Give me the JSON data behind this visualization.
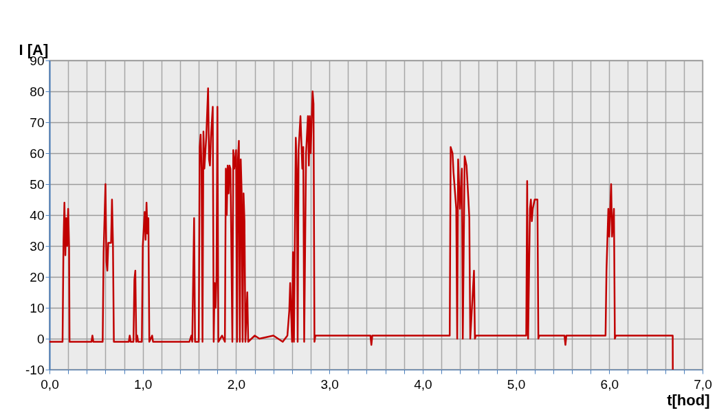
{
  "chart_data": {
    "type": "line",
    "xlabel": "t[hod]",
    "ylabel": "I [A]",
    "xlim": [
      0,
      7
    ],
    "ylim": [
      -10,
      90
    ],
    "xticks": [
      {
        "value": 0,
        "label": "0,0"
      },
      {
        "value": 0.2,
        "label": null
      },
      {
        "value": 0.4,
        "label": null
      },
      {
        "value": 0.6,
        "label": null
      },
      {
        "value": 0.8,
        "label": null
      },
      {
        "value": 1,
        "label": "1,0"
      },
      {
        "value": 1.2,
        "label": null
      },
      {
        "value": 1.4,
        "label": null
      },
      {
        "value": 1.6,
        "label": null
      },
      {
        "value": 1.8,
        "label": null
      },
      {
        "value": 2,
        "label": "2,0"
      },
      {
        "value": 2.2,
        "label": null
      },
      {
        "value": 2.4,
        "label": null
      },
      {
        "value": 2.6,
        "label": null
      },
      {
        "value": 2.8,
        "label": null
      },
      {
        "value": 3,
        "label": "3,0"
      },
      {
        "value": 3.2,
        "label": null
      },
      {
        "value": 3.4,
        "label": null
      },
      {
        "value": 3.6,
        "label": null
      },
      {
        "value": 3.8,
        "label": null
      },
      {
        "value": 4,
        "label": "4,0"
      },
      {
        "value": 4.2,
        "label": null
      },
      {
        "value": 4.4,
        "label": null
      },
      {
        "value": 4.6,
        "label": null
      },
      {
        "value": 4.8,
        "label": null
      },
      {
        "value": 5,
        "label": "5,0"
      },
      {
        "value": 5.2,
        "label": null
      },
      {
        "value": 5.4,
        "label": null
      },
      {
        "value": 5.6,
        "label": null
      },
      {
        "value": 5.8,
        "label": null
      },
      {
        "value": 6,
        "label": "6,0"
      },
      {
        "value": 6.2,
        "label": null
      },
      {
        "value": 6.4,
        "label": null
      },
      {
        "value": 6.6,
        "label": null
      },
      {
        "value": 6.8,
        "label": null
      },
      {
        "value": 7,
        "label": "7,0"
      }
    ],
    "yticks": [
      -10,
      0,
      10,
      20,
      30,
      40,
      50,
      60,
      70,
      80,
      90
    ],
    "grid": true,
    "marker": "none",
    "line_style": "solid",
    "series": [
      {
        "color": "#c00000",
        "x": [
          0,
          0.14,
          0.15,
          0.16,
          0.17,
          0.18,
          0.19,
          0.2,
          0.21,
          0.215,
          0.45,
          0.46,
          0.47,
          0.57,
          0.58,
          0.6,
          0.61,
          0.62,
          0.63,
          0.66,
          0.67,
          0.68,
          0.69,
          0.85,
          0.86,
          0.87,
          0.9,
          0.91,
          0.92,
          0.93,
          0.94,
          0.95,
          0.99,
          1.0,
          1.02,
          1.03,
          1.04,
          1.05,
          1.06,
          1.07,
          1.1,
          1.11,
          1.5,
          1.52,
          1.53,
          1.55,
          1.56,
          1.6,
          1.61,
          1.62,
          1.63,
          1.64,
          1.65,
          1.66,
          1.68,
          1.7,
          1.71,
          1.72,
          1.73,
          1.75,
          1.76,
          1.77,
          1.78,
          1.79,
          1.8,
          1.81,
          1.85,
          1.88,
          1.89,
          1.9,
          1.91,
          1.92,
          1.93,
          1.94,
          1.96,
          1.97,
          1.98,
          2.0,
          2.01,
          2.02,
          2.03,
          2.04,
          2.05,
          2.06,
          2.07,
          2.08,
          2.09,
          2.1,
          2.12,
          2.13,
          2.2,
          2.25,
          2.4,
          2.5,
          2.55,
          2.57,
          2.58,
          2.6,
          2.61,
          2.62,
          2.64,
          2.65,
          2.66,
          2.67,
          2.69,
          2.71,
          2.72,
          2.73,
          2.75,
          2.77,
          2.78,
          2.79,
          2.8,
          2.82,
          2.83,
          2.84,
          2.85,
          3.44,
          3.45,
          3.46,
          4.29,
          4.3,
          4.32,
          4.33,
          4.36,
          4.37,
          4.38,
          4.4,
          4.42,
          4.43,
          4.45,
          4.47,
          4.49,
          4.5,
          4.51,
          4.55,
          4.56,
          4.57,
          5.11,
          5.12,
          5.13,
          5.15,
          5.16,
          5.17,
          5.18,
          5.2,
          5.23,
          5.24,
          5.25,
          5.52,
          5.53,
          5.54,
          5.96,
          5.97,
          5.99,
          6.0,
          6.02,
          6.03,
          6.05,
          6.06,
          6.07,
          6.68,
          6.681
        ],
        "values": [
          -1,
          -1,
          31,
          44,
          27,
          39,
          30,
          42,
          30,
          -1,
          -1,
          1,
          -1,
          -1,
          28,
          50,
          25,
          22,
          31,
          31,
          45,
          31,
          -1,
          -1,
          1,
          -1,
          -1,
          19,
          22,
          -1,
          1,
          -1,
          -1,
          30,
          41,
          32,
          44,
          34,
          39,
          -1,
          1,
          -1,
          -1,
          1,
          -1,
          39,
          -1,
          -1,
          62,
          66,
          55,
          -1,
          67,
          55,
          65,
          81,
          58,
          56,
          65,
          75,
          -1,
          18,
          10,
          20,
          75,
          -1,
          1,
          -1,
          55,
          40,
          56,
          47,
          56,
          55,
          -1,
          61,
          55,
          61,
          -1,
          58,
          64,
          -1,
          58,
          47,
          -1,
          47,
          38,
          -1,
          15,
          -1,
          1,
          0,
          1,
          -1,
          1,
          9,
          18,
          -1,
          28,
          -1,
          65,
          55,
          -1,
          61,
          72,
          55,
          62,
          -1,
          60,
          72,
          56,
          72,
          60,
          80,
          76,
          -1,
          1,
          1,
          -2,
          1,
          1,
          62,
          60,
          54,
          42,
          0,
          58,
          42,
          55,
          0,
          59,
          56,
          45,
          39,
          0,
          22,
          0,
          1,
          1,
          51,
          0,
          42,
          45,
          38,
          42,
          45,
          45,
          0,
          1,
          1,
          -2,
          1,
          1,
          22,
          42,
          33,
          50,
          33,
          42,
          0,
          1,
          1,
          -10
        ]
      }
    ]
  }
}
